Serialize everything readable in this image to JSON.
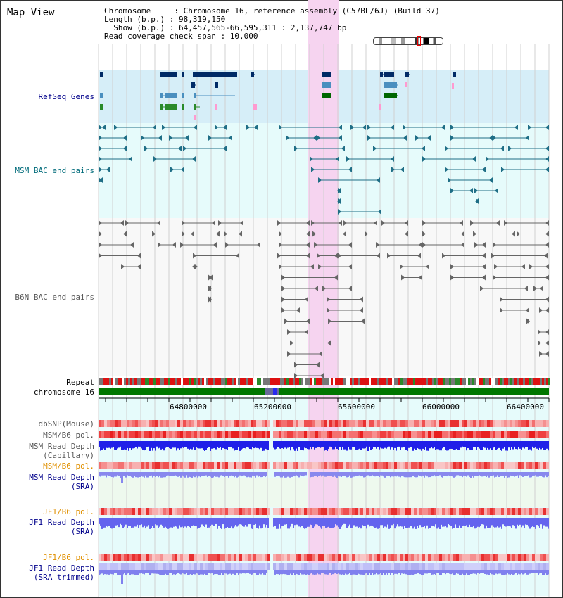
{
  "page": {
    "title": "Map View"
  },
  "info": {
    "chromosome": "Chromosome     : Chromosome 16, reference assembly (C57BL/6J) (Build 37)",
    "length": "Length (b.p.) : 98,319,150",
    "show": "  Show (b.p.) : 64,457,565-66,595,311 : 2,137,747 bp",
    "span": "Read coverage check span : 10,000"
  },
  "tracks": {
    "refseq": "RefSeq Genes",
    "msm_bac": "MSM BAC end pairs",
    "b6n_bac": "B6N BAC end pairs",
    "repeat": "Repeat",
    "chromosome": "chromosome 16",
    "dbsnp": "dbSNP(Mouse)",
    "msm_b6_pol": "MSM/B6 pol.",
    "msm_read_cap_1": "MSM Read Depth",
    "msm_read_cap_2": "(Capillary)",
    "msm_b6_pol_sra": "MSM/B6 pol.",
    "msm_read_sra_1": "MSM Read Depth",
    "msm_read_sra_2": "(SRA)",
    "jf1_b6_pol": "JF1/B6 pol.",
    "jf1_read_sra_1": "JF1 Read Depth",
    "jf1_read_sra_2": "(SRA)",
    "jf1_b6_pol_trim": "JF1/B6 pol.",
    "jf1_read_trim_1": "JF1 Read Depth",
    "jf1_read_trim_2": "(SRA trimmed)"
  },
  "axis": {
    "ticks": [
      "64800000",
      "65200000",
      "65600000",
      "66000000",
      "66400000"
    ]
  },
  "colors": {
    "refseq_bg": "#d6eef8",
    "msm_bg": "#e6fbfb",
    "highlight": "#f6d4f0",
    "label_blue": "#00008b",
    "label_teal": "#006b7a",
    "label_gray": "#555555",
    "label_orange": "#e09000"
  }
}
